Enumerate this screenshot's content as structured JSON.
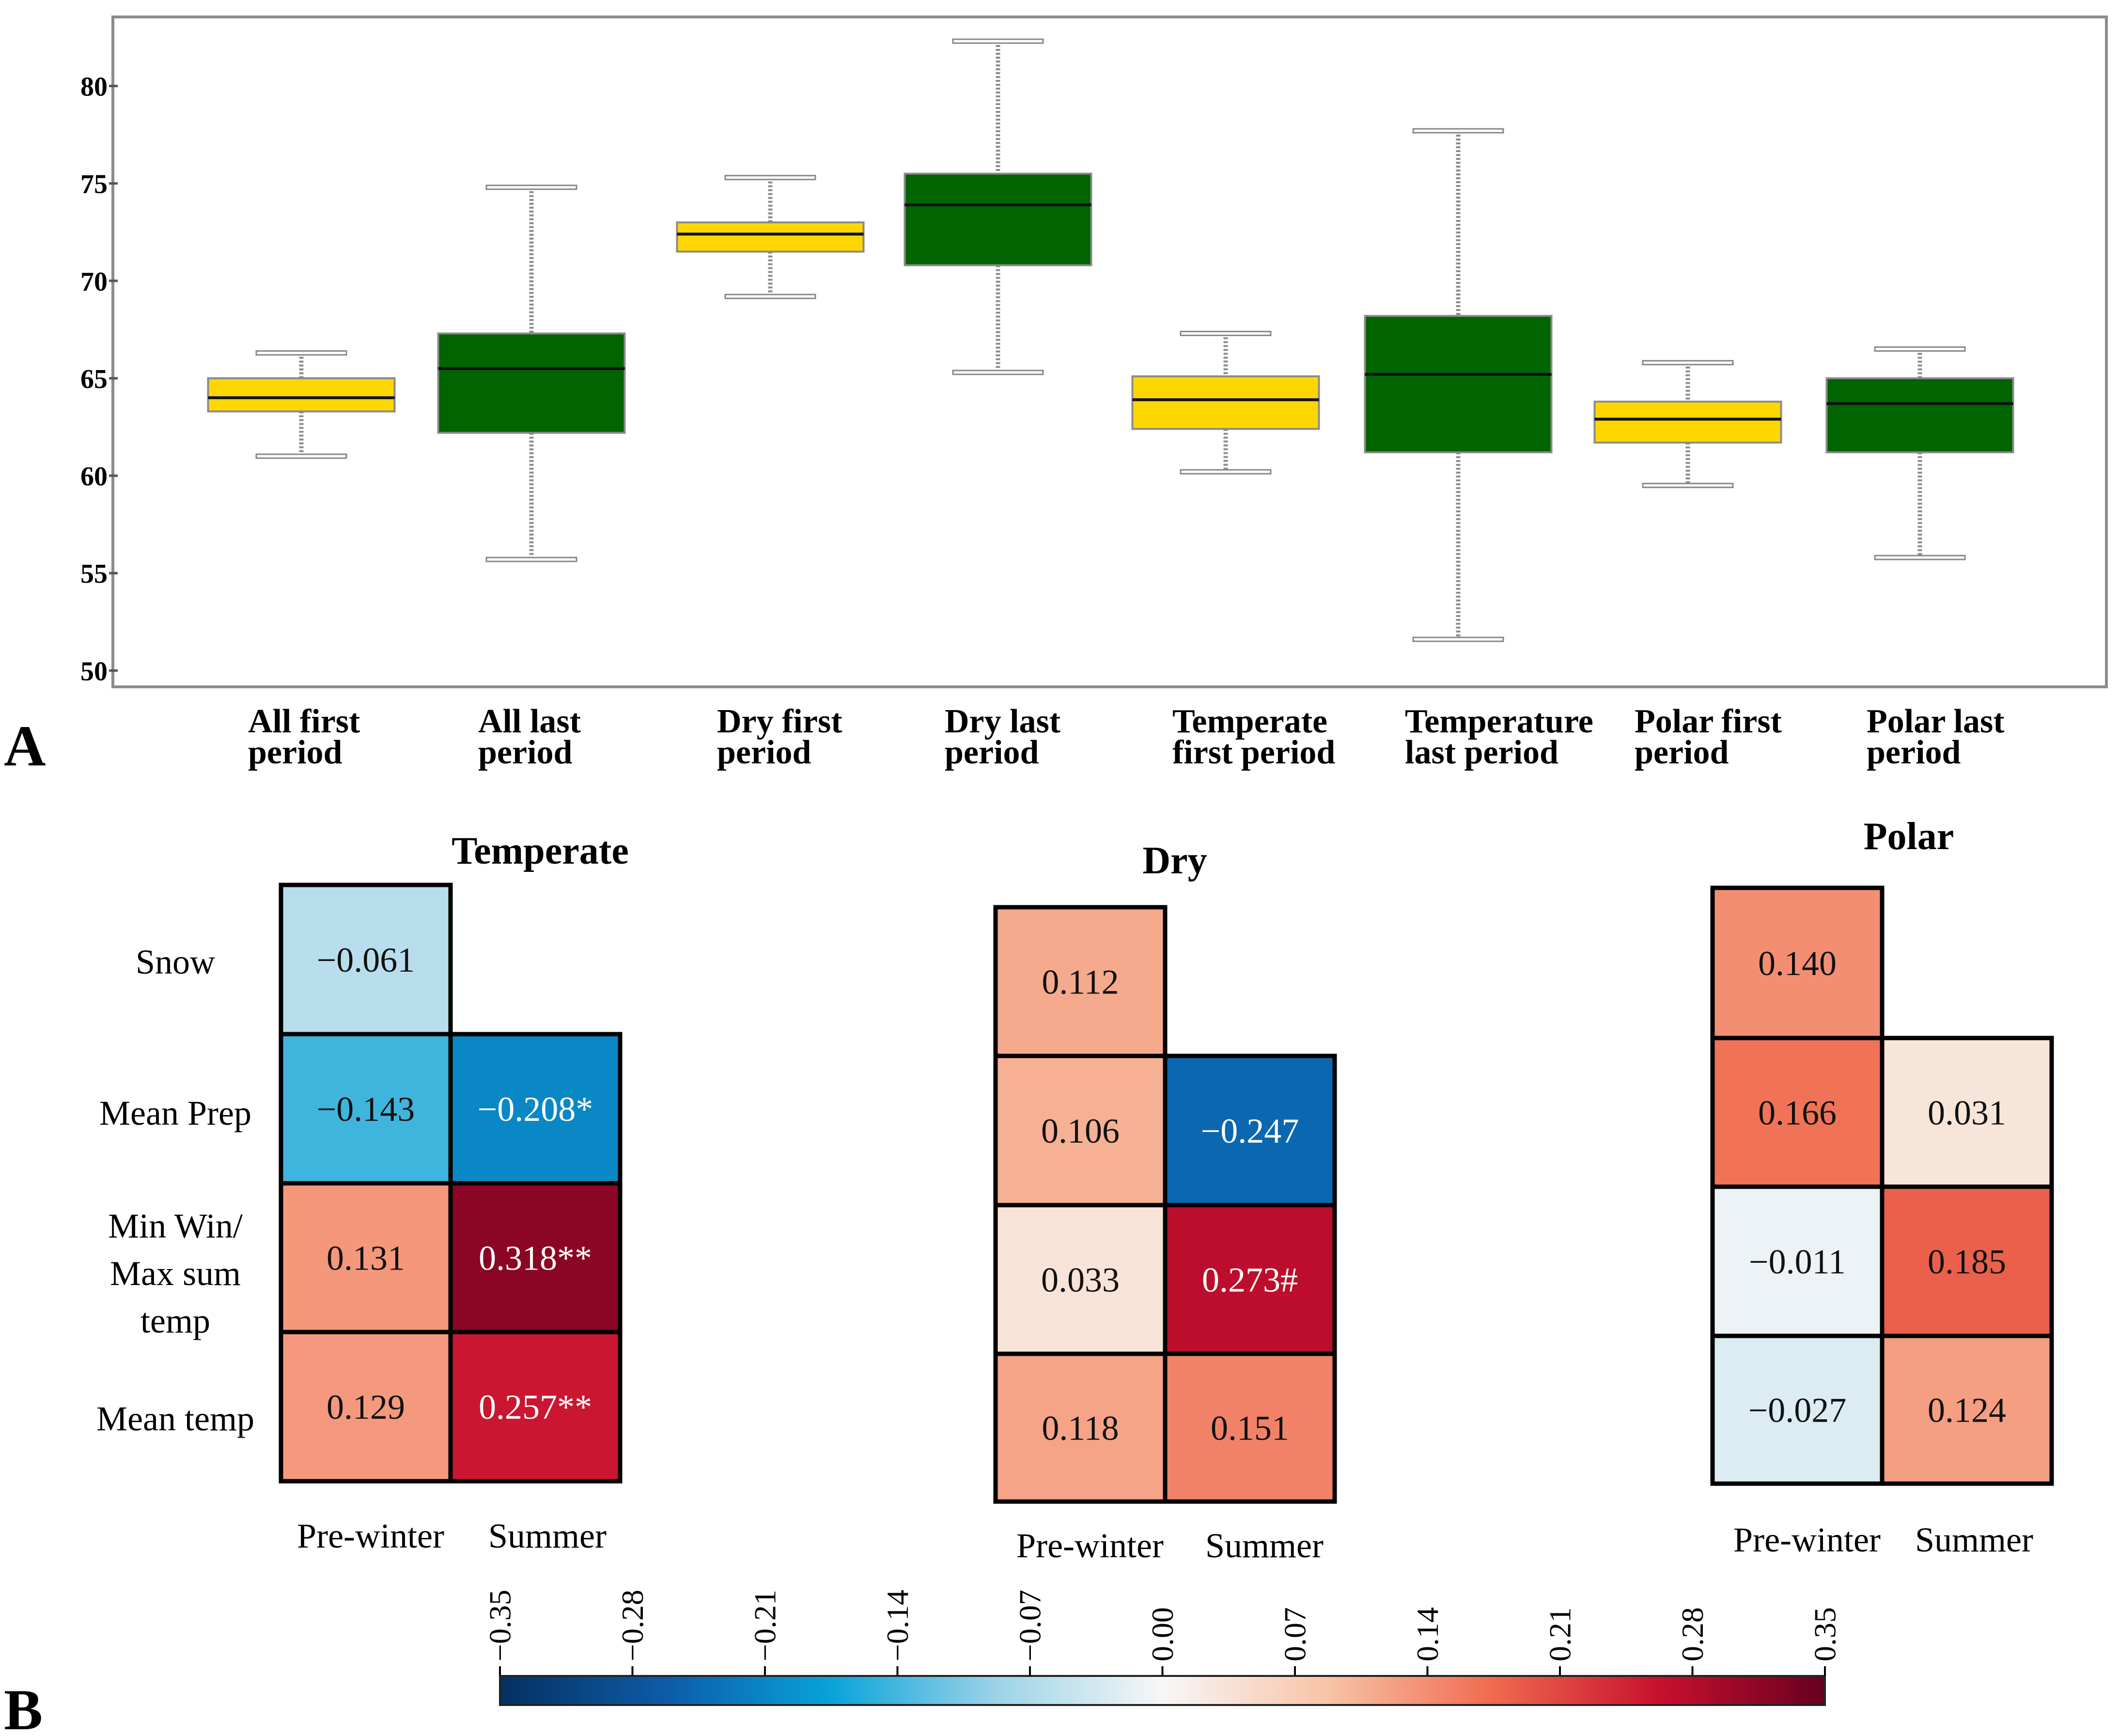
{
  "panel_labels": {
    "a": "A",
    "b": "B"
  },
  "chart_data": [
    {
      "type": "box",
      "id": "panel-a",
      "title": "",
      "xlabel": "",
      "ylabel": "",
      "ylim": [
        49.5,
        83.2
      ],
      "yticks": [
        50,
        55,
        60,
        65,
        70,
        75,
        80
      ],
      "ytick_labels": [
        "50",
        "55",
        "60",
        "65",
        "70",
        "75",
        "80"
      ],
      "grid": false,
      "legend": "none",
      "colors": {
        "first": "#FFD700",
        "last": "#006400"
      },
      "boxes": [
        {
          "label_lines": [
            "All first",
            "period"
          ],
          "group": "first",
          "whisker_low": 61.0,
          "q1": 63.3,
          "median": 64.0,
          "q3": 65.0,
          "whisker_high": 66.3
        },
        {
          "label_lines": [
            "All last",
            "period"
          ],
          "group": "last",
          "whisker_low": 55.7,
          "q1": 62.2,
          "median": 65.5,
          "q3": 67.3,
          "whisker_high": 74.8
        },
        {
          "label_lines": [
            "Dry first",
            "period"
          ],
          "group": "first",
          "whisker_low": 69.2,
          "q1": 71.5,
          "median": 72.4,
          "q3": 73.0,
          "whisker_high": 75.3
        },
        {
          "label_lines": [
            "Dry last",
            "period"
          ],
          "group": "last",
          "whisker_low": 65.3,
          "q1": 70.8,
          "median": 73.9,
          "q3": 75.5,
          "whisker_high": 82.3
        },
        {
          "label_lines": [
            "Temperate",
            "first  period"
          ],
          "group": "first",
          "whisker_low": 60.2,
          "q1": 62.4,
          "median": 63.9,
          "q3": 65.1,
          "whisker_high": 67.3
        },
        {
          "label_lines": [
            "Temperature",
            "last  period"
          ],
          "group": "last",
          "whisker_low": 51.6,
          "q1": 61.2,
          "median": 65.2,
          "q3": 68.2,
          "whisker_high": 77.7
        },
        {
          "label_lines": [
            "Polar first",
            "period"
          ],
          "group": "first",
          "whisker_low": 59.5,
          "q1": 61.7,
          "median": 62.9,
          "q3": 63.8,
          "whisker_high": 65.8
        },
        {
          "label_lines": [
            "Polar last",
            "period"
          ],
          "group": "last",
          "whisker_low": 55.8,
          "q1": 61.2,
          "median": 63.7,
          "q3": 65.0,
          "whisker_high": 66.5
        }
      ]
    },
    {
      "type": "heatmap",
      "id": "panel-b",
      "row_labels": [
        [
          "Snow"
        ],
        [
          "Mean Prep"
        ],
        [
          "Min Win/",
          "Max sum",
          "temp"
        ],
        [
          "Mean temp"
        ]
      ],
      "col_labels": [
        "Pre-winter",
        "Summer"
      ],
      "colorbar": {
        "min": -0.35,
        "max": 0.35,
        "ticks": [
          "−0.35",
          "−0.28",
          "−0.21",
          "−0.14",
          "−0.07",
          "0.00",
          "0.07",
          "0.14",
          "0.21",
          "0.28",
          "0.35"
        ],
        "stops": [
          "#053061",
          "#0C5BA7",
          "#09A3D9",
          "#9DD3E8",
          "#F7F7F7",
          "#F8C3A6",
          "#EF6A4F",
          "#C8102E",
          "#67001F"
        ]
      },
      "panels": [
        {
          "title": "Temperate",
          "cells": [
            [
              {
                "value": -0.061,
                "label": "−0.061"
              },
              null
            ],
            [
              {
                "value": -0.143,
                "label": "−0.143"
              },
              {
                "value": -0.208,
                "label": "−0.208*"
              }
            ],
            [
              {
                "value": 0.131,
                "label": "0.131"
              },
              {
                "value": 0.318,
                "label": "0.318**"
              }
            ],
            [
              {
                "value": 0.129,
                "label": "0.129"
              },
              {
                "value": 0.257,
                "label": "0.257**"
              }
            ]
          ]
        },
        {
          "title": "Dry",
          "cells": [
            [
              {
                "value": 0.112,
                "label": "0.112"
              },
              null
            ],
            [
              {
                "value": 0.106,
                "label": "0.106"
              },
              {
                "value": -0.247,
                "label": "−0.247"
              }
            ],
            [
              {
                "value": 0.033,
                "label": "0.033"
              },
              {
                "value": 0.273,
                "label": "0.273#"
              }
            ],
            [
              {
                "value": 0.118,
                "label": "0.118"
              },
              {
                "value": 0.151,
                "label": "0.151"
              }
            ]
          ]
        },
        {
          "title": "Polar",
          "cells": [
            [
              {
                "value": 0.14,
                "label": "0.140"
              },
              null
            ],
            [
              {
                "value": 0.166,
                "label": "0.166"
              },
              {
                "value": 0.031,
                "label": "0.031"
              }
            ],
            [
              {
                "value": -0.011,
                "label": "−0.011"
              },
              {
                "value": 0.185,
                "label": "0.185"
              }
            ],
            [
              {
                "value": -0.027,
                "label": "−0.027"
              },
              {
                "value": 0.124,
                "label": "0.124"
              }
            ]
          ]
        }
      ]
    }
  ]
}
